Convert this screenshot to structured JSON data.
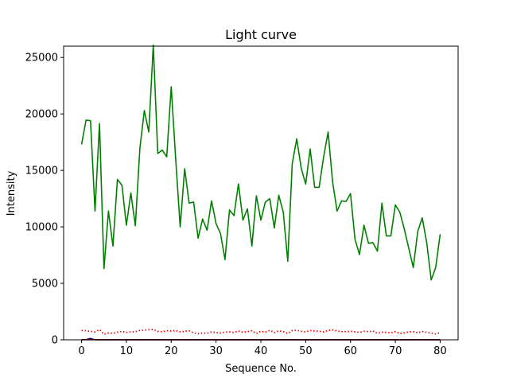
{
  "chart_data": {
    "type": "line",
    "title": "Light curve",
    "xlabel": "Sequence No.",
    "ylabel": "Intensity",
    "xlim": [
      -4,
      84
    ],
    "ylim": [
      0,
      26000
    ],
    "xticks": [
      0,
      10,
      20,
      30,
      40,
      50,
      60,
      70,
      80
    ],
    "yticks": [
      0,
      5000,
      10000,
      15000,
      20000,
      25000
    ],
    "grid": false,
    "legend": "none",
    "series": [
      {
        "color": "#008000",
        "style": "solid",
        "x": [
          0,
          1,
          2,
          3,
          4,
          5,
          6,
          7,
          8,
          9,
          10,
          11,
          12,
          13,
          14,
          15,
          16,
          17,
          18,
          19,
          20,
          21,
          22,
          23,
          24,
          25,
          26,
          27,
          28,
          29,
          30,
          31,
          32,
          33,
          34,
          35,
          36,
          37,
          38,
          39,
          40,
          41,
          42,
          43,
          44,
          45,
          46,
          47,
          48,
          49,
          50,
          51,
          52,
          53,
          54,
          55,
          56,
          57,
          58,
          59,
          60,
          61,
          62,
          63,
          64,
          65,
          66,
          67,
          68,
          69,
          70,
          71,
          72,
          73,
          74,
          75,
          76,
          77,
          78,
          79,
          80
        ],
        "values": [
          17300,
          19450,
          19400,
          11400,
          19150,
          6300,
          11400,
          8300,
          14200,
          13700,
          10150,
          13000,
          10100,
          16900,
          20300,
          18400,
          26100,
          16500,
          16800,
          16200,
          22400,
          16000,
          10000,
          15150,
          12100,
          12200,
          9000,
          10700,
          9700,
          12300,
          10300,
          9400,
          7100,
          11500,
          11000,
          13800,
          10600,
          11600,
          8300,
          12750,
          10600,
          12200,
          12500,
          9900,
          12800,
          11300,
          6950,
          15600,
          17800,
          15200,
          13800,
          16900,
          13500,
          13500,
          16200,
          18400,
          14000,
          11400,
          12300,
          12250,
          12950,
          8900,
          7550,
          10150,
          8550,
          8600,
          7850,
          12100,
          9200,
          9200,
          11950,
          11300,
          9800,
          8100,
          6400,
          9600,
          10800,
          8600,
          5300,
          6400,
          9350
        ]
      },
      {
        "color": "#ff0000",
        "style": "dotted",
        "x": [
          0,
          1,
          2,
          3,
          4,
          5,
          6,
          7,
          8,
          9,
          10,
          11,
          12,
          13,
          14,
          15,
          16,
          17,
          18,
          19,
          20,
          21,
          22,
          23,
          24,
          25,
          26,
          27,
          28,
          29,
          30,
          31,
          32,
          33,
          34,
          35,
          36,
          37,
          38,
          39,
          40,
          41,
          42,
          43,
          44,
          45,
          46,
          47,
          48,
          49,
          50,
          51,
          52,
          53,
          54,
          55,
          56,
          57,
          58,
          59,
          60,
          61,
          62,
          63,
          64,
          65,
          66,
          67,
          68,
          69,
          70,
          71,
          72,
          73,
          74,
          75,
          76,
          77,
          78,
          79,
          80
        ],
        "values": [
          830,
          800,
          750,
          700,
          900,
          500,
          600,
          580,
          680,
          750,
          650,
          700,
          720,
          830,
          850,
          900,
          920,
          750,
          720,
          800,
          780,
          820,
          700,
          760,
          800,
          620,
          540,
          600,
          580,
          700,
          640,
          600,
          680,
          700,
          640,
          780,
          660,
          720,
          800,
          560,
          760,
          680,
          840,
          640,
          800,
          720,
          560,
          820,
          840,
          760,
          700,
          820,
          780,
          760,
          700,
          820,
          880,
          780,
          720,
          720,
          760,
          700,
          660,
          760,
          720,
          780,
          580,
          680,
          660,
          620,
          720,
          560,
          620,
          700,
          720,
          620,
          740,
          660,
          600,
          520,
          640
        ]
      },
      {
        "color": "#00008b",
        "style": "solid",
        "x": [
          0,
          1,
          2,
          3,
          4,
          5,
          6,
          7,
          8,
          9,
          10,
          11,
          12,
          13,
          14,
          15,
          16,
          17,
          18,
          19,
          20,
          21,
          22,
          23,
          24,
          25,
          26,
          27,
          28,
          29,
          30,
          31,
          32,
          33,
          34,
          35,
          36,
          37,
          38,
          39,
          40,
          41,
          42,
          43,
          44,
          45,
          46,
          47,
          48,
          49,
          50,
          51,
          52,
          53,
          54,
          55,
          56,
          57,
          58,
          59,
          60,
          61,
          62,
          63,
          64,
          65,
          66,
          67,
          68,
          69,
          70,
          71,
          72,
          73,
          74,
          75,
          76,
          77,
          78,
          79,
          80
        ],
        "values": [
          0,
          20,
          120,
          0,
          0,
          0,
          0,
          0,
          0,
          0,
          0,
          0,
          0,
          0,
          0,
          0,
          0,
          0,
          0,
          0,
          0,
          0,
          0,
          0,
          0,
          0,
          0,
          0,
          0,
          0,
          0,
          0,
          0,
          0,
          0,
          0,
          0,
          0,
          0,
          0,
          0,
          0,
          0,
          0,
          0,
          0,
          0,
          0,
          0,
          0,
          0,
          0,
          0,
          0,
          0,
          0,
          0,
          0,
          0,
          0,
          0,
          0,
          0,
          0,
          0,
          0,
          0,
          0,
          0,
          0,
          0,
          0,
          0,
          0,
          0,
          0,
          0,
          0,
          0,
          0,
          0
        ]
      },
      {
        "color": "#8b0000",
        "style": "solid",
        "x": [
          0,
          80
        ],
        "values": [
          15,
          15
        ]
      }
    ]
  }
}
